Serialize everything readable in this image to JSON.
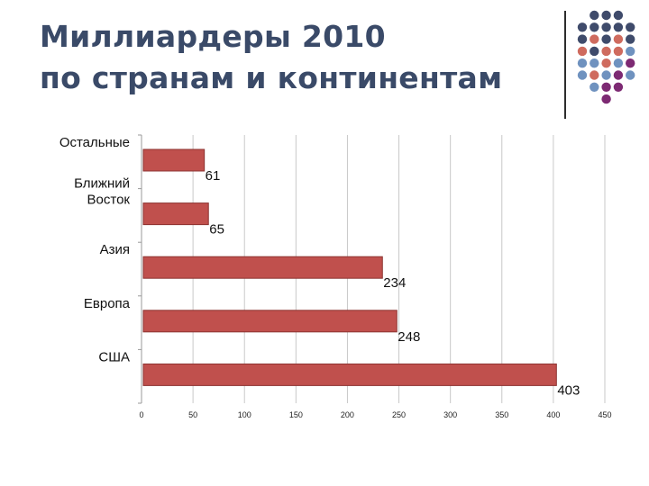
{
  "slide": {
    "title_lines": [
      "Миллиардеры 2010",
      "по странам и континентам"
    ]
  },
  "decoration": {
    "dot_colors": {
      "slate": "#3f4b6b",
      "coral": "#cf6b5e",
      "blue": "#6f92bf",
      "purple": "#7d2a73"
    },
    "dot_grid": [
      [
        null,
        "slate",
        "slate",
        "slate",
        null
      ],
      [
        "slate",
        "slate",
        "slate",
        "slate",
        "slate"
      ],
      [
        "slate",
        "coral",
        "slate",
        "coral",
        "slate"
      ],
      [
        "coral",
        "slate",
        "coral",
        "coral",
        "blue"
      ],
      [
        "blue",
        "blue",
        "coral",
        "blue",
        "purple"
      ],
      [
        "blue",
        "coral",
        "blue",
        "purple",
        "blue"
      ],
      [
        null,
        "blue",
        "purple",
        "purple",
        null
      ],
      [
        null,
        null,
        "purple",
        null,
        null
      ]
    ]
  },
  "chart_data": {
    "type": "bar",
    "orientation": "horizontal",
    "categories": [
      "Остальные",
      "Ближний Восток",
      "Азия",
      "Европа",
      "США"
    ],
    "category_label_lines": [
      [
        "Остальные"
      ],
      [
        "Ближний",
        "Восток"
      ],
      [
        "Азия"
      ],
      [
        "Европа"
      ],
      [
        "США"
      ]
    ],
    "values": [
      61,
      65,
      234,
      248,
      403
    ],
    "data_labels": [
      "61",
      "65",
      "234",
      "248",
      "403"
    ],
    "xlim": [
      0,
      450
    ],
    "xticks": [
      0,
      50,
      100,
      150,
      200,
      250,
      300,
      350,
      400,
      450
    ],
    "grid": true,
    "legend": false,
    "bar_color": "#c0504d",
    "bar_edge_color": "#8c3331"
  }
}
